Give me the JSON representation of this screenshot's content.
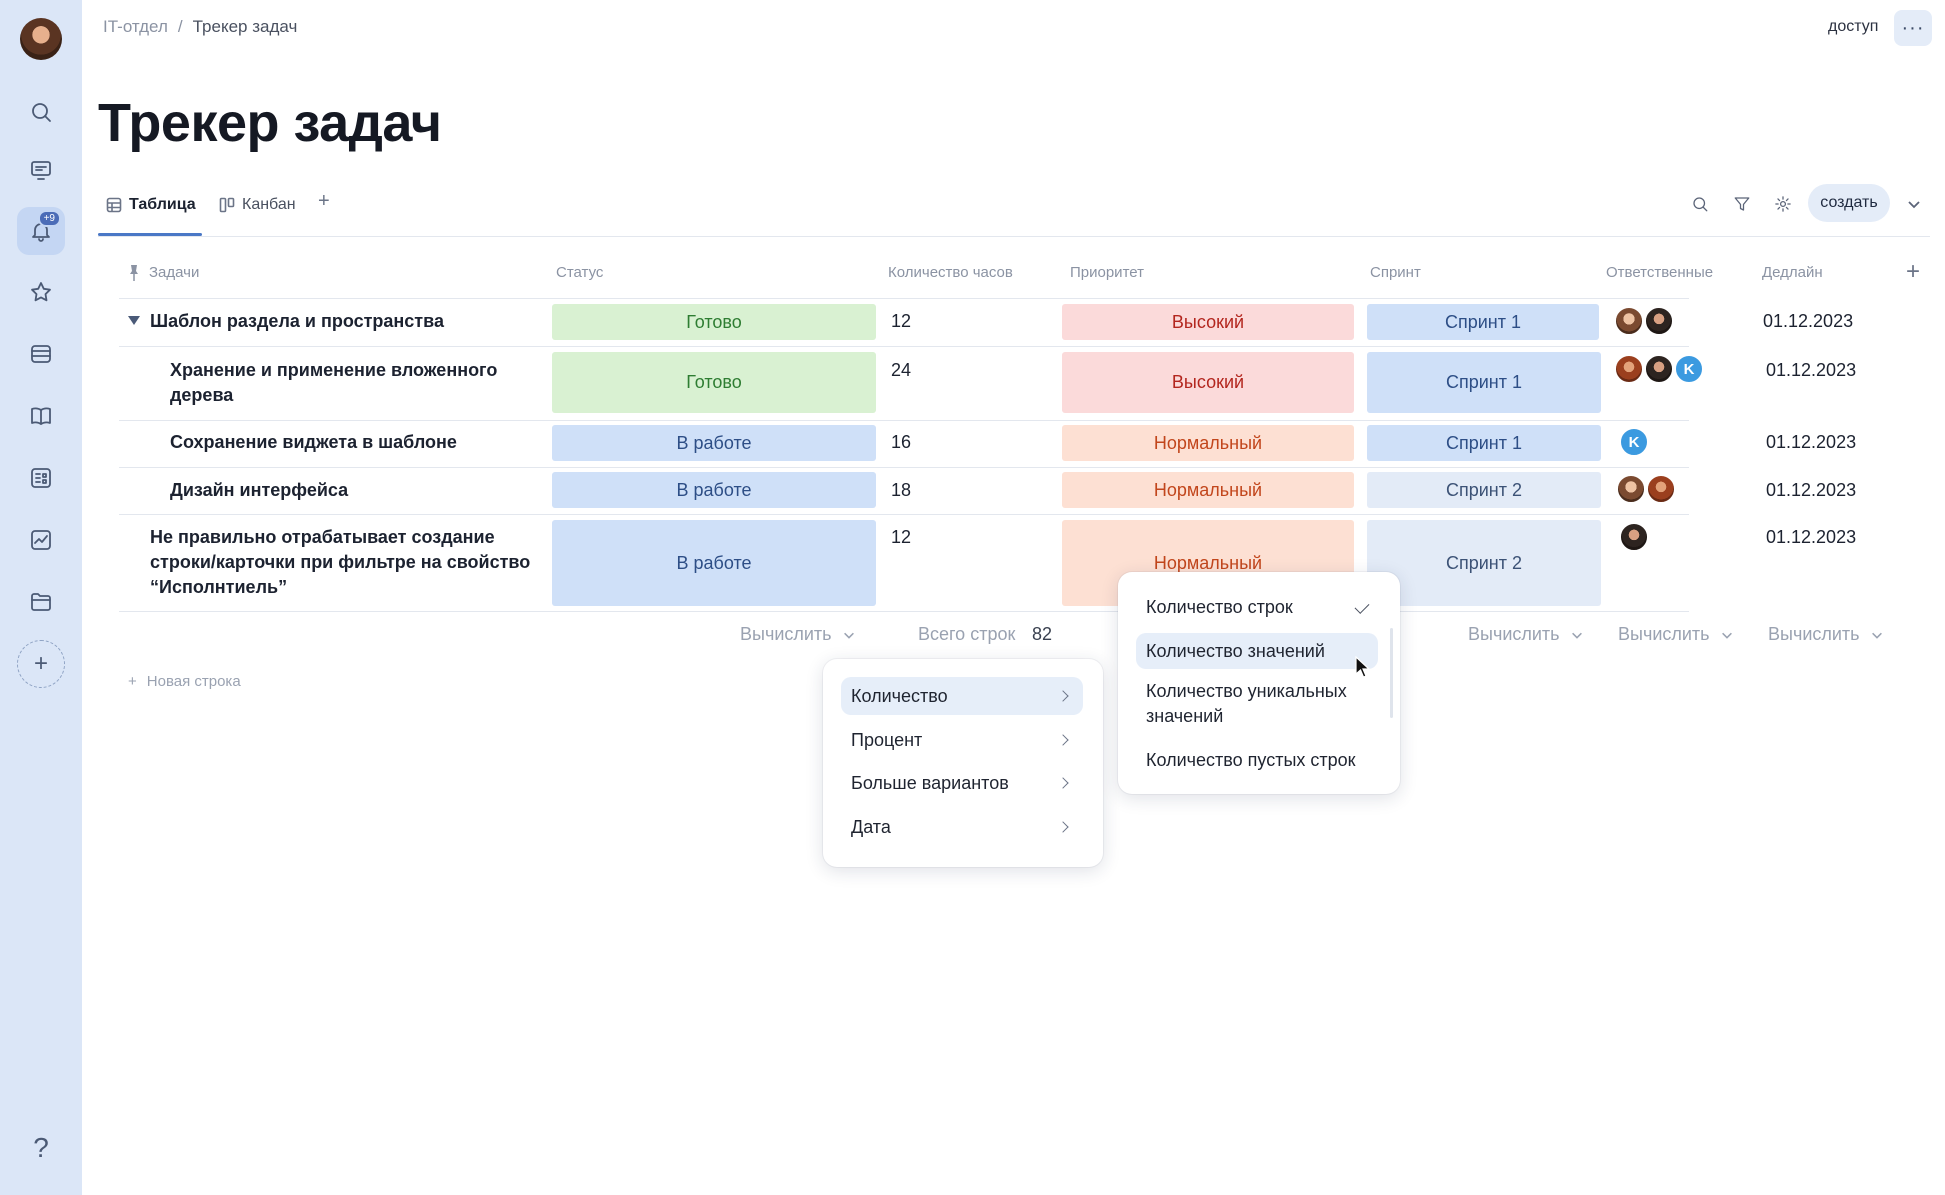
{
  "breadcrumb": {
    "parent": "IT-отдел",
    "separator": "/",
    "current": "Трекер задач"
  },
  "header": {
    "access_label": "доступ",
    "more_label": "···"
  },
  "page": {
    "title": "Трекер задач"
  },
  "views": {
    "tabs": [
      {
        "label": "Таблица",
        "icon": "table-icon"
      },
      {
        "label": "Канбан",
        "icon": "kanban-icon"
      }
    ],
    "add_label": "+"
  },
  "toolbar": {
    "create_label": "создать"
  },
  "rail": {
    "notifications_badge": "+9",
    "add_label": "+",
    "help_label": "?"
  },
  "table": {
    "columns": [
      "Задачи",
      "Статус",
      "Количество часов",
      "Приоритет",
      "Спринт",
      "Ответственные",
      "Дедлайн"
    ],
    "add_column_label": "+",
    "rows": [
      {
        "task": "Шаблон раздела и пространства",
        "status": "Готово",
        "hours": "12",
        "priority": "Высокий",
        "sprint": "Спринт 1",
        "deadline": "01.12.2023",
        "assignee_initial": ""
      },
      {
        "task": "Хранение и применение вложенного дерева",
        "status": "Готово",
        "hours": "24",
        "priority": "Высокий",
        "sprint": "Спринт 1",
        "deadline": "01.12.2023",
        "assignee_initial": "K"
      },
      {
        "task": "Сохранение виджета в шаблоне",
        "status": "В работе",
        "hours": "16",
        "priority": "Нормальный",
        "sprint": "Спринт 1",
        "deadline": "01.12.2023",
        "assignee_initial": "K"
      },
      {
        "task": "Дизайн интерфейса",
        "status": "В работе",
        "hours": "18",
        "priority": "Нормальный",
        "sprint": "Спринт 2",
        "deadline": "01.12.2023",
        "assignee_initial": ""
      },
      {
        "task": "Не правильно отрабатывает создание строки/карточки при фильтре на свойство “Исполнтиель”",
        "status": "В работе",
        "hours": "12",
        "priority": "Нормальный",
        "sprint": "Спринт 2",
        "deadline": "01.12.2023",
        "assignee_initial": ""
      }
    ],
    "footer": {
      "calc_label": "Вычислить",
      "total_label": "Всего строк",
      "total_value": "82"
    },
    "new_row_label": "Новая строка"
  },
  "calc_menu": {
    "items": [
      "Количество",
      "Процент",
      "Больше вариантов",
      "Дата"
    ],
    "highlighted": "Количество"
  },
  "count_submenu": {
    "items": [
      "Количество строк",
      "Количество значений",
      "Количество уникальных значений",
      "Количество пустых строк"
    ],
    "checked": "Количество строк",
    "hovered": "Количество значений"
  },
  "colors": {
    "rail_bg": "#dbe6f7",
    "accent": "#4a78c6",
    "done_bg": "#d9f1d2",
    "work_bg": "#cfe0f8",
    "high_bg": "#fbdada",
    "normal_bg": "#fde0d3"
  }
}
